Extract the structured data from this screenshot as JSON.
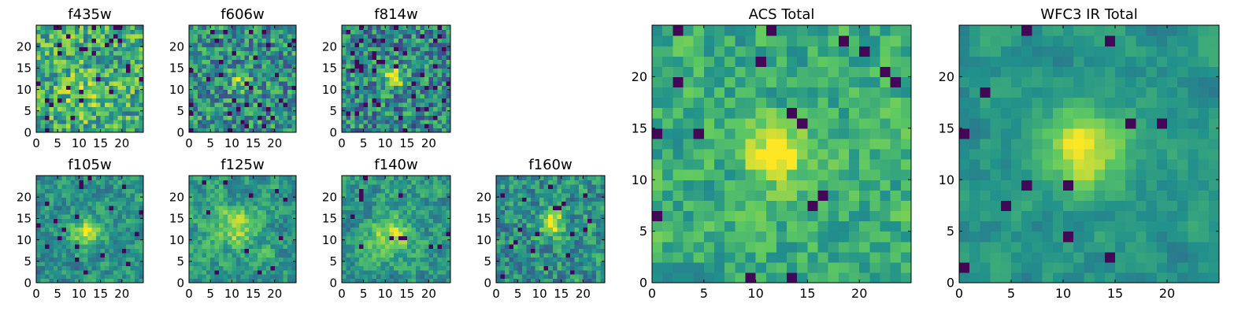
{
  "figure": {
    "background": "#ffffff"
  },
  "colormap": [
    "#440154",
    "#3b528b",
    "#21918c",
    "#5ec962",
    "#fde725"
  ],
  "chart_data": [
    {
      "id": "f435w",
      "type": "heatmap",
      "title": "f435w",
      "grid": [
        25,
        25
      ],
      "xlim": [
        0,
        25
      ],
      "ylim": [
        0,
        25
      ],
      "xticks": [
        0,
        5,
        10,
        15,
        20
      ],
      "yticks": [
        0,
        5,
        10,
        15,
        20
      ],
      "source": {
        "center": [
          11,
          9
        ],
        "sigma": 3.5,
        "amp": 0.15
      },
      "noise": {
        "seed": 11,
        "base": 0.62,
        "amp": 0.55,
        "dark": 0.05,
        "smooth": 0
      }
    },
    {
      "id": "f606w",
      "type": "heatmap",
      "title": "f606w",
      "grid": [
        25,
        25
      ],
      "xlim": [
        0,
        25
      ],
      "ylim": [
        0,
        25
      ],
      "xticks": [
        0,
        5,
        10,
        15,
        20
      ],
      "yticks": [
        0,
        5,
        10,
        15,
        20
      ],
      "source": {
        "center": [
          12,
          12
        ],
        "sigma": 1.8,
        "amp": 0.3
      },
      "noise": {
        "seed": 23,
        "base": 0.5,
        "amp": 0.55,
        "dark": 0.05,
        "smooth": 0
      }
    },
    {
      "id": "f814w",
      "type": "heatmap",
      "title": "f814w",
      "grid": [
        25,
        25
      ],
      "xlim": [
        0,
        25
      ],
      "ylim": [
        0,
        25
      ],
      "xticks": [
        0,
        5,
        10,
        15,
        20
      ],
      "yticks": [
        0,
        5,
        10,
        15,
        20
      ],
      "source": {
        "center": [
          12,
          13
        ],
        "sigma": 1.6,
        "amp": 0.55
      },
      "noise": {
        "seed": 37,
        "base": 0.47,
        "amp": 0.55,
        "dark": 0.08,
        "smooth": 0
      }
    },
    {
      "id": "f105w",
      "type": "heatmap",
      "title": "f105w",
      "grid": [
        25,
        25
      ],
      "xlim": [
        0,
        25
      ],
      "ylim": [
        0,
        25
      ],
      "xticks": [
        0,
        5,
        10,
        15,
        20
      ],
      "yticks": [
        0,
        5,
        10,
        15,
        20
      ],
      "source": {
        "center": [
          12,
          12
        ],
        "sigma": 2.6,
        "amp": 0.4
      },
      "noise": {
        "seed": 41,
        "base": 0.5,
        "amp": 0.45,
        "dark": 0.03,
        "smooth": 0.4
      }
    },
    {
      "id": "f125w",
      "type": "heatmap",
      "title": "f125w",
      "grid": [
        25,
        25
      ],
      "xlim": [
        0,
        25
      ],
      "ylim": [
        0,
        25
      ],
      "xticks": [
        0,
        5,
        10,
        15,
        20
      ],
      "yticks": [
        0,
        5,
        10,
        15,
        20
      ],
      "source": {
        "center": [
          11,
          13
        ],
        "sigma": 3.2,
        "amp": 0.3
      },
      "noise": {
        "seed": 53,
        "base": 0.55,
        "amp": 0.45,
        "dark": 0.02,
        "smooth": 0.4
      }
    },
    {
      "id": "f140w",
      "type": "heatmap",
      "title": "f140w",
      "grid": [
        25,
        25
      ],
      "xlim": [
        0,
        25
      ],
      "ylim": [
        0,
        25
      ],
      "xticks": [
        0,
        5,
        10,
        15,
        20
      ],
      "yticks": [
        0,
        5,
        10,
        15,
        20
      ],
      "source": {
        "center": [
          11,
          11
        ],
        "sigma": 3.3,
        "amp": 0.35
      },
      "noise": {
        "seed": 67,
        "base": 0.53,
        "amp": 0.45,
        "dark": 0.02,
        "smooth": 0.4
      }
    },
    {
      "id": "f160w",
      "type": "heatmap",
      "title": "f160w",
      "grid": [
        25,
        25
      ],
      "xlim": [
        0,
        25
      ],
      "ylim": [
        0,
        25
      ],
      "xticks": [
        0,
        5,
        10,
        15,
        20
      ],
      "yticks": [
        0,
        5,
        10,
        15,
        20
      ],
      "source": {
        "center": [
          13,
          14
        ],
        "sigma": 2.2,
        "amp": 0.45
      },
      "noise": {
        "seed": 79,
        "base": 0.5,
        "amp": 0.5,
        "dark": 0.04,
        "smooth": 0.2
      }
    },
    {
      "id": "acs-total",
      "type": "heatmap",
      "title": "ACS Total",
      "grid": [
        25,
        25
      ],
      "xlim": [
        0,
        25
      ],
      "ylim": [
        0,
        25
      ],
      "xticks": [
        0,
        5,
        10,
        15,
        20
      ],
      "yticks": [
        0,
        5,
        10,
        15,
        20
      ],
      "source": {
        "center": [
          12,
          12.5
        ],
        "sigma": 1.9,
        "amp": 0.5
      },
      "noise": {
        "seed": 97,
        "base": 0.62,
        "amp": 0.38,
        "dark": 0.035,
        "smooth": 0.25
      }
    },
    {
      "id": "wfc3-ir-total",
      "type": "heatmap",
      "title": "WFC3 IR Total",
      "grid": [
        25,
        25
      ],
      "xlim": [
        0,
        25
      ],
      "ylim": [
        0,
        25
      ],
      "xticks": [
        0,
        5,
        10,
        15,
        20
      ],
      "yticks": [
        0,
        5,
        10,
        15,
        20
      ],
      "source": {
        "center": [
          12,
          13
        ],
        "sigma": 2.7,
        "amp": 0.45
      },
      "noise": {
        "seed": 113,
        "base": 0.52,
        "amp": 0.28,
        "dark": 0.025,
        "smooth": 0.55
      }
    }
  ]
}
